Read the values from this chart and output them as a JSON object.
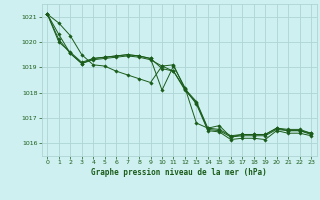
{
  "background_color": "#cff0f0",
  "grid_color": "#aed4d4",
  "line_color": "#1a5c1a",
  "title": "Graphe pression niveau de la mer (hPa)",
  "xlim": [
    -0.5,
    23.5
  ],
  "ylim": [
    1015.5,
    1021.5
  ],
  "yticks": [
    1016,
    1017,
    1018,
    1019,
    1020,
    1021
  ],
  "xticks": [
    0,
    1,
    2,
    3,
    4,
    5,
    6,
    7,
    8,
    9,
    10,
    11,
    12,
    13,
    14,
    15,
    16,
    17,
    18,
    19,
    20,
    21,
    22,
    23
  ],
  "series": [
    [
      1021.1,
      1020.75,
      1020.25,
      1019.5,
      1019.1,
      1019.05,
      1018.85,
      1018.7,
      1018.55,
      1018.4,
      1019.05,
      1019.1,
      1018.15,
      1017.55,
      1016.5,
      1016.45,
      1016.15,
      1016.2,
      1016.2,
      1016.15,
      1016.5,
      1016.4,
      1016.4,
      1016.3
    ],
    [
      1021.1,
      1020.3,
      1019.55,
      1019.15,
      1019.3,
      1019.35,
      1019.4,
      1019.45,
      1019.4,
      1019.3,
      1019.05,
      1018.85,
      1018.1,
      1017.6,
      1016.55,
      1016.5,
      1016.25,
      1016.3,
      1016.3,
      1016.3,
      1016.55,
      1016.5,
      1016.5,
      1016.35
    ],
    [
      1021.1,
      1020.1,
      1019.55,
      1019.15,
      1019.35,
      1019.4,
      1019.45,
      1019.5,
      1019.45,
      1019.35,
      1018.95,
      1018.85,
      1018.15,
      1017.65,
      1016.6,
      1016.55,
      1016.3,
      1016.35,
      1016.35,
      1016.35,
      1016.6,
      1016.5,
      1016.5,
      1016.4
    ],
    [
      1021.1,
      1020.0,
      1019.6,
      1019.2,
      1019.35,
      1019.4,
      1019.45,
      1019.5,
      1019.45,
      1019.35,
      1018.1,
      1019.05,
      1018.2,
      1016.8,
      1016.6,
      1016.7,
      1016.25,
      1016.35,
      1016.35,
      1016.35,
      1016.6,
      1016.55,
      1016.55,
      1016.4
    ]
  ]
}
